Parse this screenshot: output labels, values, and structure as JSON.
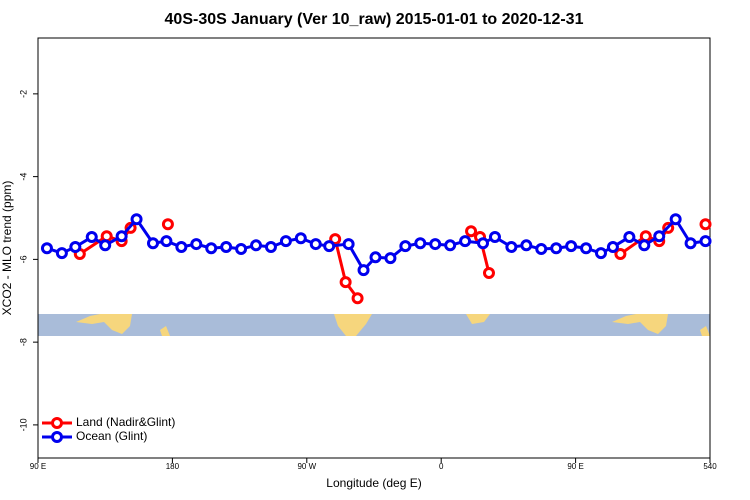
{
  "chart_data": {
    "type": "line",
    "title": "40S-30S January (Ver 10_raw)   2015-01-01 to 2020-12-31",
    "xlabel": "Longitude (deg E)",
    "ylabel": "XCO2 - MLO trend (ppm)",
    "xlim": [
      90,
      540
    ],
    "xticks": [
      {
        "value": 90,
        "label": "90 E"
      },
      180,
      {
        "value": 270,
        "label": "90 W"
      },
      {
        "value": 360,
        "label": "0"
      },
      {
        "value": 450,
        "label": "90 E"
      },
      540
    ],
    "ylim": [
      -10.8,
      -0.65
    ],
    "yticks": [
      -2,
      -4,
      -6,
      -8,
      -10
    ],
    "legend": "bottom-left",
    "series": [
      {
        "name": "Land (Nadir&Glint)",
        "color": "#ff0000",
        "x": [
          118,
          136,
          146,
          152,
          160,
          177,
          250,
          289,
          296,
          304,
          340,
          380,
          386,
          392,
          450,
          480,
          497,
          506,
          512,
          525,
          537
        ],
        "values": [
          -5.87,
          -5.44,
          -5.56,
          -5.24,
          null,
          -5.15,
          null,
          -5.51,
          -6.55,
          -6.94,
          null,
          -5.32,
          -5.46,
          -6.33,
          null,
          -5.87,
          -5.44,
          -5.56,
          -5.24,
          null,
          -5.15
        ]
      },
      {
        "name": "Ocean (Glint)",
        "color": "#0000ee",
        "x": [
          96,
          106,
          115,
          126,
          135,
          146,
          156,
          167,
          176,
          186,
          196,
          206,
          216,
          226,
          236,
          246,
          256,
          266,
          276,
          285,
          298,
          308,
          316,
          326,
          336,
          346,
          356,
          366,
          376,
          388,
          396,
          407,
          417,
          427,
          437,
          447,
          457,
          467,
          475,
          486,
          496,
          506,
          517,
          527,
          537
        ],
        "values": [
          -5.73,
          -5.85,
          -5.7,
          -5.46,
          -5.66,
          -5.44,
          -5.03,
          -5.61,
          -5.56,
          -5.7,
          -5.63,
          -5.73,
          -5.7,
          -5.75,
          -5.66,
          -5.7,
          -5.56,
          -5.49,
          -5.63,
          -5.68,
          -5.63,
          -6.26,
          -5.95,
          -5.97,
          -5.68,
          -5.61,
          -5.63,
          -5.66,
          -5.56,
          -5.61,
          -5.46,
          -5.7,
          -5.66,
          -5.75,
          -5.73,
          -5.68,
          -5.73,
          -5.85,
          -5.7,
          -5.46,
          -5.66,
          -5.44,
          -5.03,
          -5.61,
          -5.56
        ]
      }
    ]
  }
}
